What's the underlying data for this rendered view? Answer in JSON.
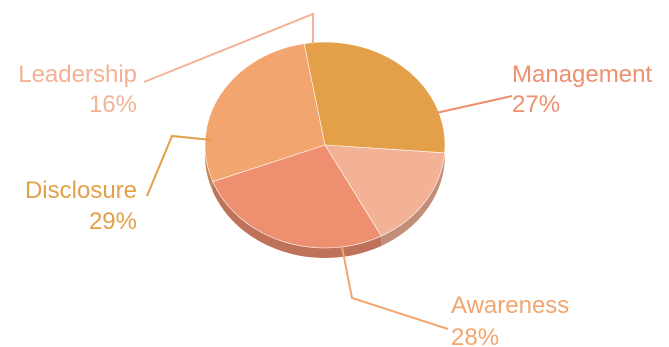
{
  "chart_data": {
    "type": "pie",
    "style": "3d-tilted",
    "title": "",
    "legend": "none",
    "categories": [
      "Management",
      "Awareness",
      "Disclosure",
      "Leadership"
    ],
    "values": [
      27,
      28,
      29,
      16
    ],
    "value_labels": [
      "27%",
      "28%",
      "29%",
      "16%"
    ],
    "colors": [
      "#EE8F6F",
      "#F2A56E",
      "#E3A049",
      "#F3B296"
    ]
  }
}
